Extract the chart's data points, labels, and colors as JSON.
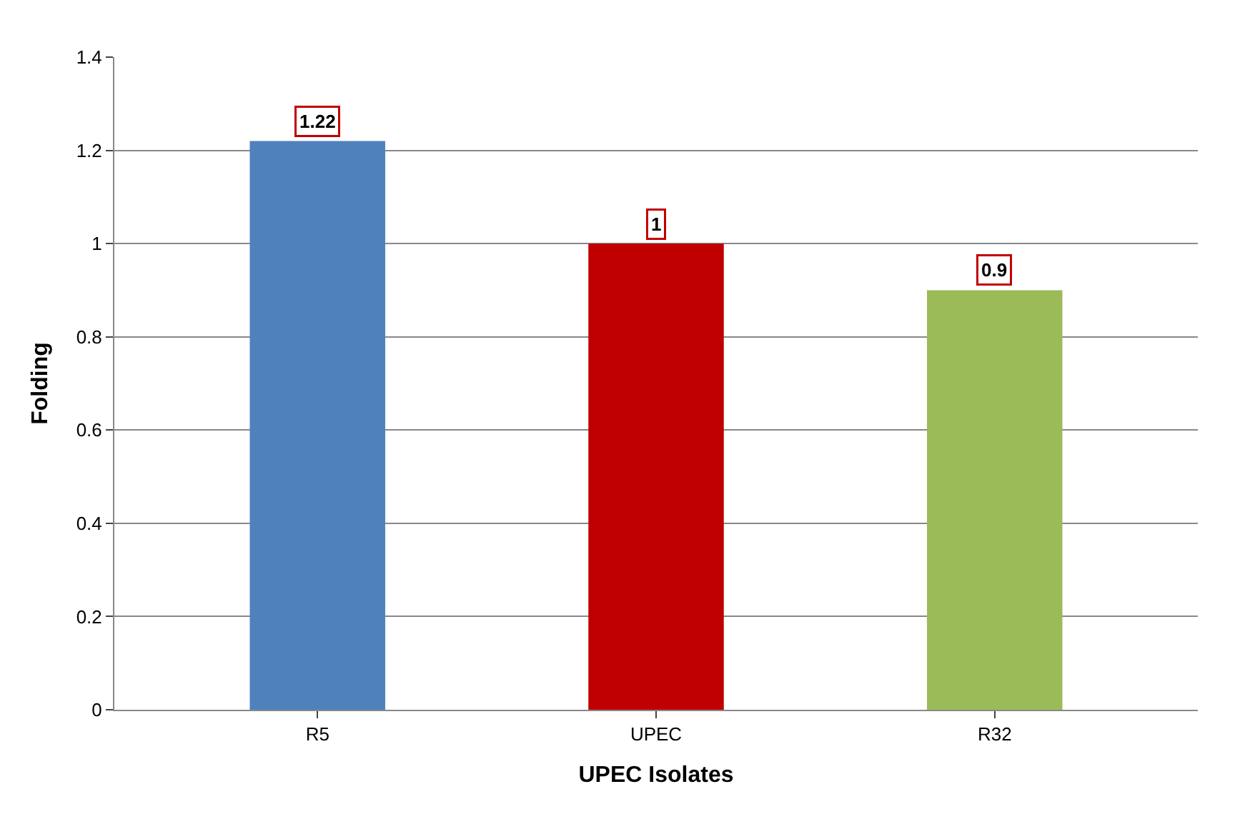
{
  "chart_data": {
    "type": "bar",
    "xlabel": "UPEC Isolates",
    "ylabel": "Folding",
    "categories": [
      "R5",
      "UPEC",
      "R32"
    ],
    "values": [
      1.22,
      1,
      0.9
    ],
    "colors": [
      "#4f81bd",
      "#c00000",
      "#9bbb59"
    ],
    "ylim": [
      0,
      1.4
    ],
    "yticks": [
      0,
      0.2,
      0.4,
      0.6,
      0.8,
      1,
      1.2,
      1.4
    ],
    "grid": "y",
    "data_labels": true
  }
}
